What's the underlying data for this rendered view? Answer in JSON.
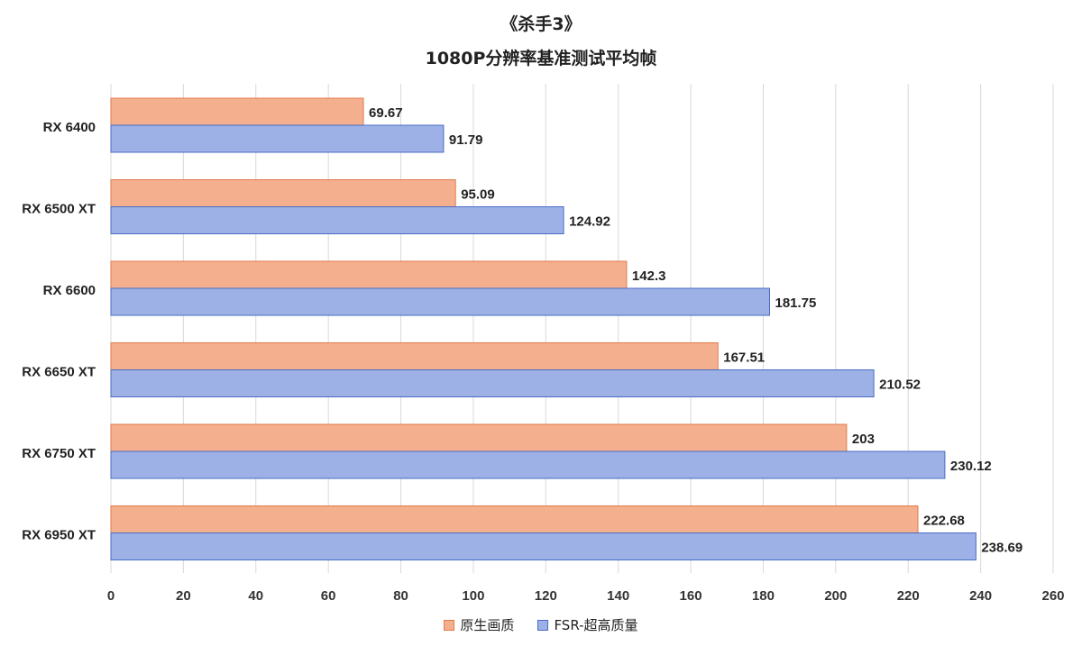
{
  "chart_data": {
    "type": "bar",
    "orientation": "horizontal",
    "title": "《杀手3》",
    "subtitle": "1080P分辨率基准测试平均帧",
    "categories": [
      "RX 6400",
      "RX 6500 XT",
      "RX 6600",
      "RX 6650 XT",
      "RX 6750 XT",
      "RX 6950 XT"
    ],
    "series": [
      {
        "name": "原生画质",
        "values": [
          69.67,
          95.09,
          142.3,
          167.51,
          203,
          222.68
        ],
        "value_labels": [
          "69.67",
          "95.09",
          "142.3",
          "167.51",
          "203",
          "222.68"
        ]
      },
      {
        "name": "FSR-超高质量",
        "values": [
          91.79,
          124.92,
          181.75,
          210.52,
          230.12,
          238.69
        ],
        "value_labels": [
          "91.79",
          "124.92",
          "181.75",
          "210.52",
          "230.12",
          "238.69"
        ]
      }
    ],
    "xlim": [
      0,
      260
    ],
    "xticks": [
      0,
      20,
      40,
      60,
      80,
      100,
      120,
      140,
      160,
      180,
      200,
      220,
      240,
      260
    ],
    "grid": true,
    "legend_position": "bottom",
    "colors": {
      "native_fill": "#f4b08e",
      "native_stroke": "#e07a4a",
      "fsr_fill": "#9db1e6",
      "fsr_stroke": "#4a6cc4",
      "grid": "#d9d9d9"
    }
  }
}
